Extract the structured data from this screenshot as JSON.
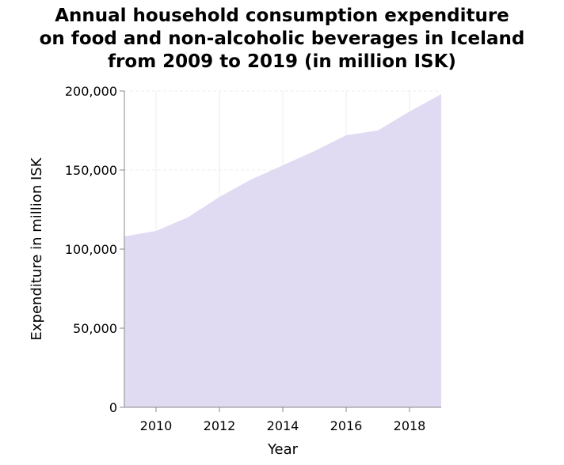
{
  "chart_data": {
    "type": "area",
    "title_lines": [
      "Annual household consumption expenditure",
      "on food and non-alcoholic beverages in Iceland",
      "from 2009 to 2019 (in million ISK)"
    ],
    "xlabel": "Year",
    "ylabel": "Expenditure in million ISK",
    "x": [
      2009,
      2010,
      2011,
      2012,
      2013,
      2014,
      2015,
      2016,
      2017,
      2018,
      2019
    ],
    "values": [
      108000,
      111500,
      120000,
      133000,
      144000,
      153000,
      162000,
      172000,
      175000,
      187000,
      198000
    ],
    "xlim": [
      2009,
      2019
    ],
    "ylim": [
      0,
      200000
    ],
    "xticks": [
      2010,
      2012,
      2014,
      2016,
      2018
    ],
    "xtick_labels": [
      "2010",
      "2012",
      "2014",
      "2016",
      "2018"
    ],
    "yticks": [
      0,
      50000,
      100000,
      150000,
      200000
    ],
    "ytick_labels": [
      "0",
      "50,000",
      "100,000",
      "150,000",
      "200,000"
    ],
    "fill_color": "#e0dbf2",
    "grid": true
  }
}
